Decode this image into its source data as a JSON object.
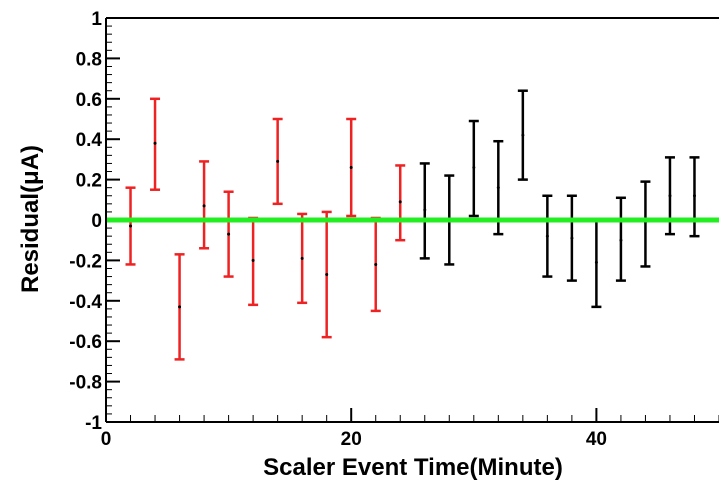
{
  "chart_data": {
    "type": "scatter",
    "title": "",
    "xlabel": "Scaler Event Time(Minute)",
    "ylabel": "Residual(μA)",
    "xlim": [
      0,
      50
    ],
    "ylim": [
      -1,
      1
    ],
    "x_ticks": [
      0,
      20,
      40
    ],
    "y_ticks": [
      -1,
      -0.8,
      -0.6,
      -0.4,
      -0.2,
      0,
      0.2,
      0.4,
      0.6,
      0.8,
      1
    ],
    "grid": false,
    "legend": "none",
    "reference_line": {
      "y": 0,
      "color": "#22ee22"
    },
    "series": [
      {
        "color": "#ee2222",
        "points": [
          {
            "x": 2,
            "y": -0.03,
            "ylow": -0.22,
            "yhigh": 0.16
          },
          {
            "x": 4,
            "y": 0.38,
            "ylow": 0.15,
            "yhigh": 0.6
          },
          {
            "x": 6,
            "y": -0.43,
            "ylow": -0.69,
            "yhigh": -0.17
          },
          {
            "x": 8,
            "y": 0.07,
            "ylow": -0.14,
            "yhigh": 0.29
          },
          {
            "x": 10,
            "y": -0.07,
            "ylow": -0.28,
            "yhigh": 0.14
          },
          {
            "x": 12,
            "y": -0.2,
            "ylow": -0.42,
            "yhigh": 0.01
          },
          {
            "x": 14,
            "y": 0.29,
            "ylow": 0.08,
            "yhigh": 0.5
          },
          {
            "x": 16,
            "y": -0.19,
            "ylow": -0.41,
            "yhigh": 0.03
          },
          {
            "x": 18,
            "y": -0.27,
            "ylow": -0.58,
            "yhigh": 0.04
          },
          {
            "x": 20,
            "y": 0.26,
            "ylow": 0.02,
            "yhigh": 0.5
          },
          {
            "x": 22,
            "y": -0.22,
            "ylow": -0.45,
            "yhigh": 0.01
          },
          {
            "x": 24,
            "y": 0.09,
            "ylow": -0.1,
            "yhigh": 0.27
          }
        ]
      },
      {
        "color": "#000000",
        "points": [
          {
            "x": 26,
            "y": 0.05,
            "ylow": -0.19,
            "yhigh": 0.28
          },
          {
            "x": 28,
            "y": 0.0,
            "ylow": -0.22,
            "yhigh": 0.22
          },
          {
            "x": 30,
            "y": 0.26,
            "ylow": 0.02,
            "yhigh": 0.49
          },
          {
            "x": 32,
            "y": 0.16,
            "ylow": -0.07,
            "yhigh": 0.39
          },
          {
            "x": 34,
            "y": 0.42,
            "ylow": 0.2,
            "yhigh": 0.64
          },
          {
            "x": 36,
            "y": -0.08,
            "ylow": -0.28,
            "yhigh": 0.12
          },
          {
            "x": 38,
            "y": -0.09,
            "ylow": -0.3,
            "yhigh": 0.12
          },
          {
            "x": 40,
            "y": -0.21,
            "ylow": -0.43,
            "yhigh": 0.0
          },
          {
            "x": 42,
            "y": -0.1,
            "ylow": -0.3,
            "yhigh": 0.11
          },
          {
            "x": 44,
            "y": -0.01,
            "ylow": -0.23,
            "yhigh": 0.19
          },
          {
            "x": 46,
            "y": 0.12,
            "ylow": -0.07,
            "yhigh": 0.31
          },
          {
            "x": 48,
            "y": 0.12,
            "ylow": -0.08,
            "yhigh": 0.31
          }
        ]
      }
    ]
  }
}
